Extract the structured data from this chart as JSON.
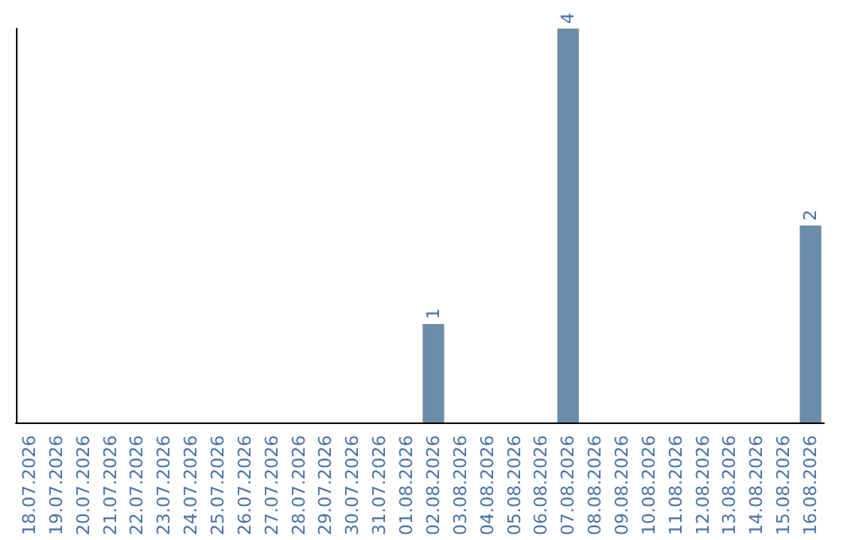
{
  "chart_data": {
    "type": "bar",
    "categories": [
      "18.07.2026",
      "19.07.2026",
      "20.07.2026",
      "21.07.2026",
      "22.07.2026",
      "23.07.2026",
      "24.07.2026",
      "25.07.2026",
      "26.07.2026",
      "27.07.2026",
      "28.07.2026",
      "29.07.2026",
      "30.07.2026",
      "31.07.2026",
      "01.08.2026",
      "02.08.2026",
      "03.08.2026",
      "04.08.2026",
      "05.08.2026",
      "06.08.2026",
      "07.08.2026",
      "08.08.2026",
      "09.08.2026",
      "10.08.2026",
      "11.08.2026",
      "12.08.2026",
      "13.08.2026",
      "14.08.2026",
      "15.08.2026",
      "16.08.2026"
    ],
    "values": [
      null,
      null,
      null,
      null,
      null,
      null,
      null,
      null,
      null,
      null,
      null,
      null,
      null,
      null,
      null,
      1,
      null,
      null,
      null,
      null,
      4,
      null,
      null,
      null,
      null,
      null,
      null,
      null,
      null,
      2
    ],
    "color": "#6d8ca9",
    "data_labels": true,
    "tick_labels": "x",
    "grid": false
  }
}
